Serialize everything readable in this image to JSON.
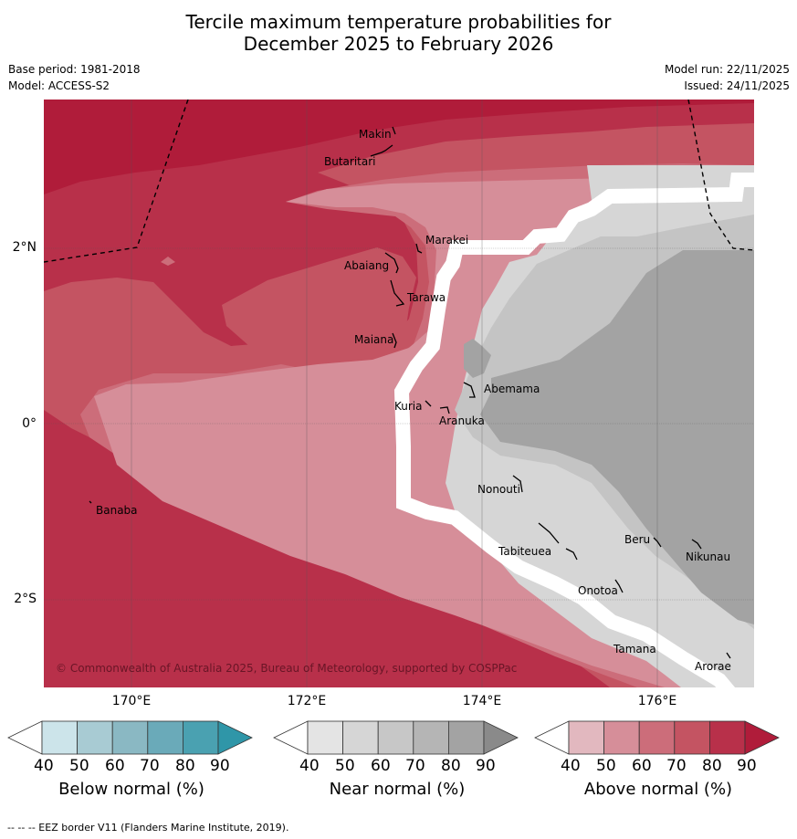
{
  "title": {
    "line1": "Tercile maximum temperature probabilities for",
    "line2": "December 2025 to February 2026"
  },
  "meta": {
    "base_period": "Base period: 1981-2018",
    "model": "Model: ACCESS-S2",
    "model_run": "Model run: 22/11/2025",
    "issued": "Issued: 24/11/2025"
  },
  "map": {
    "lat_labels": [
      "2°N",
      "0°",
      "2°S"
    ],
    "lon_labels": [
      "170°E",
      "172°E",
      "174°E",
      "176°E"
    ],
    "places": [
      "Makin",
      "Butaritari",
      "Marakei",
      "Abaiang",
      "Tarawa",
      "Maiana",
      "Abemama",
      "Kuria",
      "Aranuka",
      "Nonouti",
      "Banaba",
      "Tabiteuea",
      "Beru",
      "Nikunau",
      "Onotoa",
      "Tamana",
      "Arorae"
    ],
    "copyright": "© Commonwealth of Australia 2025, Bureau of Meteorology, supported by COSPPac"
  },
  "colorbars": {
    "ticks": [
      "40",
      "50",
      "60",
      "70",
      "80",
      "90"
    ],
    "below": {
      "title": "Below normal (%)",
      "colors": [
        "#ffffff",
        "#cce4ea",
        "#a8cbd3",
        "#8ab8c3",
        "#6aaab9",
        "#4aa1b1",
        "#2f96a8"
      ]
    },
    "near": {
      "title": "Near normal (%)",
      "colors": [
        "#ffffff",
        "#e4e4e4",
        "#d6d6d6",
        "#c7c7c7",
        "#b5b5b5",
        "#a3a3a3",
        "#8a8a8a"
      ]
    },
    "above": {
      "title": "Above normal (%)",
      "colors": [
        "#ffffff",
        "#e2b8bf",
        "#d68e99",
        "#cc6d7a",
        "#c45462",
        "#b8304a",
        "#b01c3a"
      ]
    }
  },
  "footer": "--  --  -- EEZ border V11 (Flanders Marine Institute, 2019)."
}
